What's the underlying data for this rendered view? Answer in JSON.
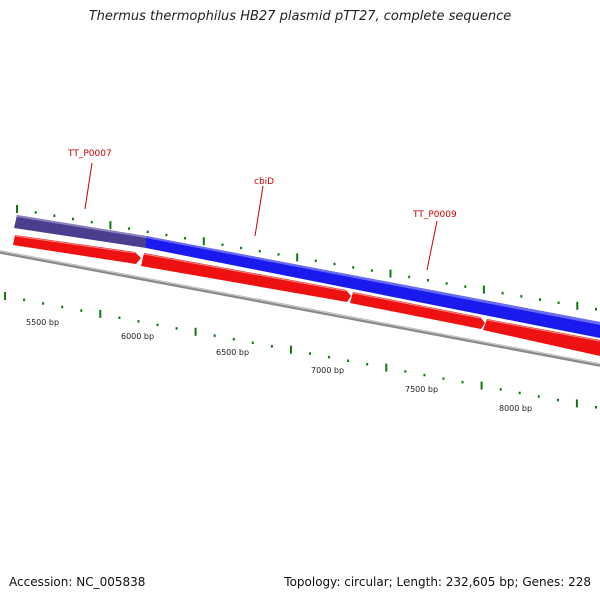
{
  "title": "Thermus thermophilus HB27 plasmid pTT27, complete sequence",
  "footer": {
    "accession": "Accession: NC_005838",
    "summary": "Topology: circular; Length: 232,605 bp; Genes: 228"
  },
  "colors": {
    "backbone": "#888888",
    "gene_forward": "#1a1aee",
    "gene_forward_alt": "#4a3f8f",
    "gene_reverse": "#ee1111",
    "label": "#cc0000",
    "tick": "#117711"
  },
  "gene_labels": [
    "TT_P0007",
    "cbiD",
    "TT_P0009"
  ],
  "bp_labels": [
    "5500 bp",
    "6000 bp",
    "6500 bp",
    "7000 bp",
    "7500 bp",
    "8000 bp"
  ]
}
